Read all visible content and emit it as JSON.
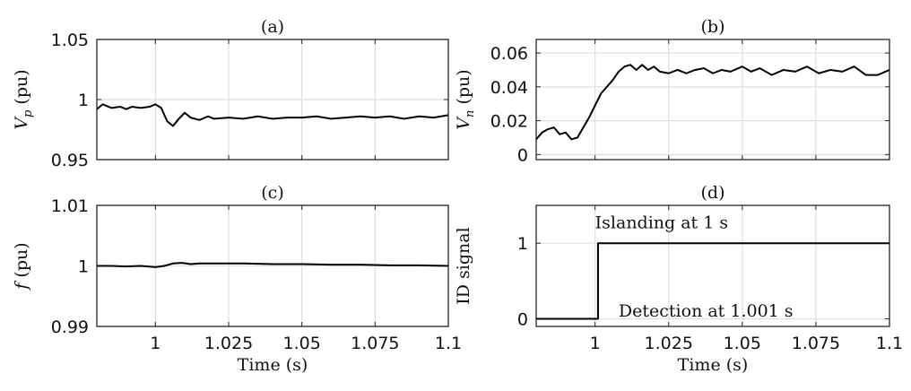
{
  "chart_data": [
    {
      "type": "line",
      "title": "(a)",
      "ylabel_var": "V",
      "ylabel_sub": "p",
      "ylabel_unit": " (pu)",
      "xlabel": "",
      "xlim": [
        0.98,
        1.1
      ],
      "ylim": [
        0.95,
        1.05
      ],
      "xticks": [
        1,
        1.025,
        1.05,
        1.075,
        1.1
      ],
      "xtick_labels": [],
      "yticks": [
        0.95,
        1,
        1.05
      ],
      "ytick_labels": [
        "0.95",
        "1",
        "1.05"
      ],
      "grid": true,
      "series": [
        {
          "x": [
            0.98,
            0.982,
            0.985,
            0.988,
            0.99,
            0.992,
            0.995,
            0.998,
            1.0,
            1.002,
            1.004,
            1.006,
            1.008,
            1.01,
            1.012,
            1.015,
            1.018,
            1.02,
            1.025,
            1.03,
            1.035,
            1.04,
            1.045,
            1.05,
            1.055,
            1.06,
            1.065,
            1.07,
            1.075,
            1.08,
            1.085,
            1.09,
            1.095,
            1.1
          ],
          "y": [
            0.992,
            0.996,
            0.993,
            0.994,
            0.992,
            0.994,
            0.993,
            0.994,
            0.996,
            0.993,
            0.982,
            0.978,
            0.984,
            0.989,
            0.985,
            0.983,
            0.986,
            0.984,
            0.985,
            0.984,
            0.986,
            0.984,
            0.985,
            0.985,
            0.986,
            0.984,
            0.985,
            0.986,
            0.985,
            0.986,
            0.984,
            0.986,
            0.985,
            0.987
          ]
        }
      ]
    },
    {
      "type": "line",
      "title": "(b)",
      "ylabel_var": "V",
      "ylabel_sub": "n",
      "ylabel_unit": " (pu)",
      "xlabel": "",
      "xlim": [
        0.98,
        1.1
      ],
      "ylim": [
        -0.003,
        0.068
      ],
      "xticks": [
        1,
        1.025,
        1.05,
        1.075,
        1.1
      ],
      "xtick_labels": [],
      "yticks": [
        0,
        0.02,
        0.04,
        0.06
      ],
      "ytick_labels": [
        "0",
        "0.02",
        "0.04",
        "0.06"
      ],
      "grid": true,
      "series": [
        {
          "x": [
            0.98,
            0.982,
            0.984,
            0.986,
            0.988,
            0.99,
            0.992,
            0.994,
            0.996,
            0.998,
            1.0,
            1.002,
            1.004,
            1.006,
            1.008,
            1.01,
            1.012,
            1.014,
            1.016,
            1.018,
            1.02,
            1.022,
            1.025,
            1.028,
            1.031,
            1.034,
            1.037,
            1.04,
            1.043,
            1.046,
            1.05,
            1.053,
            1.056,
            1.06,
            1.064,
            1.068,
            1.072,
            1.076,
            1.08,
            1.084,
            1.088,
            1.092,
            1.096,
            1.1
          ],
          "y": [
            0.009,
            0.013,
            0.015,
            0.016,
            0.012,
            0.013,
            0.009,
            0.01,
            0.016,
            0.022,
            0.029,
            0.036,
            0.04,
            0.044,
            0.049,
            0.052,
            0.053,
            0.05,
            0.053,
            0.05,
            0.052,
            0.049,
            0.048,
            0.05,
            0.048,
            0.05,
            0.051,
            0.048,
            0.05,
            0.049,
            0.052,
            0.049,
            0.051,
            0.047,
            0.05,
            0.049,
            0.052,
            0.048,
            0.05,
            0.049,
            0.052,
            0.047,
            0.047,
            0.05
          ]
        }
      ]
    },
    {
      "type": "line",
      "title": "(c)",
      "ylabel_var": "f",
      "ylabel_sub": "",
      "ylabel_unit": " (pu)",
      "xlabel": "Time (s)",
      "xlim": [
        0.98,
        1.1
      ],
      "ylim": [
        0.99,
        1.01
      ],
      "xticks": [
        1,
        1.025,
        1.05,
        1.075,
        1.1
      ],
      "xtick_labels": [
        "1",
        "1.025",
        "1.05",
        "1.075",
        "1.1"
      ],
      "yticks": [
        0.99,
        1,
        1.01
      ],
      "ytick_labels": [
        "0.99",
        "1",
        "1.01"
      ],
      "grid": true,
      "series": [
        {
          "x": [
            0.98,
            0.985,
            0.99,
            0.995,
            1.0,
            1.003,
            1.006,
            1.009,
            1.012,
            1.015,
            1.02,
            1.025,
            1.03,
            1.04,
            1.05,
            1.06,
            1.07,
            1.08,
            1.09,
            1.1
          ],
          "y": [
            1.0,
            1.0,
            0.9999,
            1.0,
            0.9998,
            1.0,
            1.0004,
            1.0005,
            1.0003,
            1.0004,
            1.0004,
            1.0004,
            1.0004,
            1.0003,
            1.0003,
            1.0002,
            1.0002,
            1.0001,
            1.0001,
            1.0
          ]
        }
      ]
    },
    {
      "type": "line",
      "title": "(d)",
      "ylabel": "ID signal",
      "xlabel": "Time (s)",
      "xlim": [
        0.98,
        1.1
      ],
      "ylim": [
        -0.1,
        1.5
      ],
      "xticks": [
        1,
        1.025,
        1.05,
        1.075,
        1.1
      ],
      "xtick_labels": [
        "1",
        "1.025",
        "1.05",
        "1.075",
        "1.1"
      ],
      "yticks": [
        0,
        1
      ],
      "ytick_labels": [
        "0",
        "1"
      ],
      "grid": true,
      "annotations": [
        {
          "text": "Islanding at 1 s",
          "x": 1.0,
          "y": 1.2
        },
        {
          "text": "Detection at 1.001 s",
          "x": 1.008,
          "y": 0.03
        }
      ],
      "series": [
        {
          "x": [
            0.98,
            1.001,
            1.001,
            1.1
          ],
          "y": [
            0,
            0,
            1,
            1
          ]
        }
      ]
    }
  ]
}
